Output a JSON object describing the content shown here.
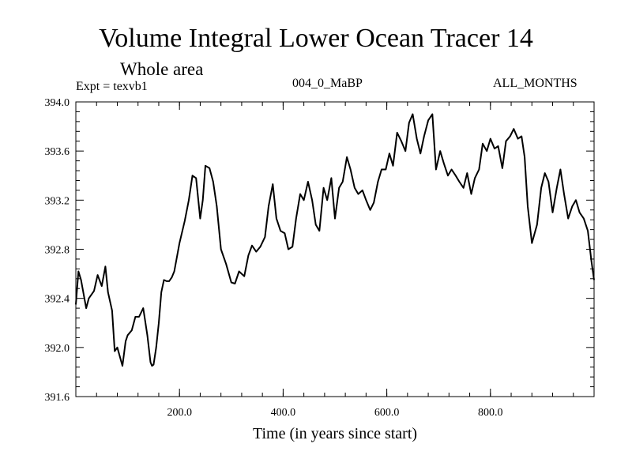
{
  "chart_data": {
    "type": "line",
    "title": "Volume Integral Lower Ocean Tracer 14",
    "subtitle": "Whole area",
    "experiment": "Expt = texvb1",
    "period": "004_0_MaBP",
    "months": "ALL_MONTHS",
    "xlabel": "Time (in years since start)",
    "ylabel": "",
    "xlim": [
      0,
      1000
    ],
    "ylim": [
      391.6,
      394.0
    ],
    "xticks": [
      200,
      400,
      600,
      800
    ],
    "xtick_labels": [
      "200.0",
      "400.0",
      "600.0",
      "800.0"
    ],
    "yticks": [
      391.6,
      392.0,
      392.4,
      392.8,
      393.2,
      393.6,
      394.0
    ],
    "ytick_labels": [
      "391.6",
      "392.0",
      "392.4",
      "392.8",
      "393.2",
      "393.6",
      "394.0"
    ],
    "grid": false,
    "series": [
      {
        "name": "Volume Integral Lower Ocean Tracer 14",
        "x": [
          0,
          5,
          10,
          20,
          25,
          35,
          42,
          50,
          57,
          62,
          70,
          75,
          80,
          90,
          96,
          100,
          108,
          115,
          122,
          130,
          138,
          144,
          147,
          150,
          155,
          160,
          165,
          170,
          175,
          180,
          185,
          190,
          200,
          210,
          218,
          225,
          232,
          240,
          245,
          250,
          258,
          265,
          272,
          280,
          290,
          300,
          307,
          315,
          325,
          333,
          340,
          348,
          356,
          365,
          372,
          380,
          387,
          395,
          403,
          410,
          418,
          425,
          433,
          440,
          448,
          456,
          463,
          470,
          478,
          485,
          493,
          500,
          508,
          515,
          523,
          530,
          538,
          545,
          553,
          560,
          568,
          575,
          583,
          590,
          598,
          605,
          612,
          620,
          628,
          636,
          643,
          650,
          658,
          665,
          672,
          680,
          688,
          695,
          703,
          710,
          718,
          725,
          733,
          740,
          748,
          755,
          763,
          770,
          778,
          785,
          793,
          800,
          808,
          815,
          823,
          830,
          838,
          845,
          853,
          860,
          866,
          872,
          880,
          890,
          898,
          905,
          912,
          920,
          928,
          935,
          942,
          950,
          958,
          965,
          972,
          980,
          988,
          995,
          1000
        ],
        "values": [
          392.35,
          392.62,
          392.55,
          392.32,
          392.4,
          392.46,
          392.59,
          392.5,
          392.66,
          392.45,
          392.3,
          391.97,
          392.0,
          391.85,
          392.05,
          392.1,
          392.14,
          392.25,
          392.25,
          392.32,
          392.1,
          391.88,
          391.85,
          391.86,
          392.0,
          392.2,
          392.45,
          392.55,
          392.54,
          392.54,
          392.57,
          392.62,
          392.85,
          393.03,
          393.2,
          393.4,
          393.38,
          393.05,
          393.2,
          393.48,
          393.46,
          393.35,
          393.15,
          392.8,
          392.68,
          392.53,
          392.52,
          392.62,
          392.58,
          392.75,
          392.83,
          392.78,
          392.82,
          392.9,
          393.15,
          393.33,
          393.05,
          392.95,
          392.93,
          392.8,
          392.82,
          393.05,
          393.25,
          393.2,
          393.35,
          393.2,
          393.0,
          392.95,
          393.3,
          393.2,
          393.38,
          393.05,
          393.3,
          393.35,
          393.55,
          393.45,
          393.3,
          393.25,
          393.28,
          393.2,
          393.12,
          393.18,
          393.35,
          393.45,
          393.45,
          393.58,
          393.48,
          393.75,
          393.68,
          393.6,
          393.83,
          393.9,
          393.7,
          393.58,
          393.72,
          393.85,
          393.9,
          393.45,
          393.6,
          393.5,
          393.4,
          393.45,
          393.4,
          393.35,
          393.3,
          393.42,
          393.25,
          393.38,
          393.45,
          393.66,
          393.6,
          393.7,
          393.62,
          393.64,
          393.46,
          393.68,
          393.72,
          393.78,
          393.7,
          393.72,
          393.55,
          393.15,
          392.85,
          393.0,
          393.3,
          393.42,
          393.35,
          393.1,
          393.3,
          393.45,
          393.25,
          393.05,
          393.15,
          393.2,
          393.1,
          393.05,
          392.95,
          392.7,
          392.55
        ]
      }
    ]
  }
}
